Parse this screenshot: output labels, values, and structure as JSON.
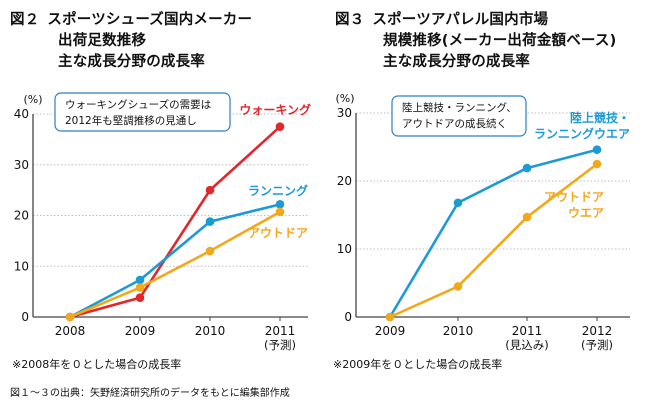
{
  "charts": {
    "left": {
      "title_fig": "図２",
      "title_lines": [
        "スポーツシューズ国内メーカー",
        "出荷足数推移",
        "主な成長分野の成長率"
      ],
      "note": "※2008年を０とした場合の成長率"
    },
    "right": {
      "title_fig": "図３",
      "title_lines": [
        "スポーツアパレル国内市場",
        "規模推移(メーカー出荷金額ベース)",
        "主な成長分野の成長率"
      ],
      "note": "※2009年を０とした場合の成長率"
    }
  },
  "source": "図１～３の出典：矢野経済研究所のデータをもとに編集部作成",
  "chart_data": [
    {
      "type": "line",
      "title": "図２ スポーツシューズ国内メーカー 出荷足数推移 主な成長分野の成長率",
      "unit_label": "(%)",
      "x": [
        "2008",
        "2009",
        "2010",
        "2011"
      ],
      "x_sublabels": [
        "",
        "",
        "",
        "(予測)"
      ],
      "ylim": [
        0,
        40
      ],
      "yticks": [
        0,
        10,
        20,
        30,
        40
      ],
      "grid": true,
      "series": [
        {
          "name": "ウォーキング",
          "color": "#e1262c",
          "values": [
            0,
            3.8,
            25,
            37.5
          ]
        },
        {
          "name": "ランニング",
          "color": "#1c9ad6",
          "values": [
            0,
            7.3,
            18.8,
            22.2
          ]
        },
        {
          "name": "アウトドア",
          "color": "#f2a81d",
          "values": [
            0,
            5.8,
            13,
            20.7
          ]
        }
      ],
      "annotation": [
        "ウォーキングシューズの需要は",
        "2012年も堅調推移の見通し"
      ]
    },
    {
      "type": "line",
      "title": "図３ スポーツアパレル国内市場 規模推移(メーカー出荷金額ベース) 主な成長分野の成長率",
      "unit_label": "(%)",
      "x": [
        "2009",
        "2010",
        "2011",
        "2012"
      ],
      "x_sublabels": [
        "",
        "",
        "(見込み)",
        "(予測)"
      ],
      "ylim": [
        0,
        30
      ],
      "yticks": [
        0,
        10,
        20,
        30
      ],
      "grid": true,
      "series": [
        {
          "name": "陸上競技・ランニングウエア",
          "label_lines": [
            "陸上競技・",
            "ランニングウエア"
          ],
          "color": "#1c9ad6",
          "values": [
            0,
            16.8,
            21.9,
            24.6
          ]
        },
        {
          "name": "アウトドアウエア",
          "label_lines": [
            "アウトドア",
            "ウエア"
          ],
          "color": "#f2a81d",
          "values": [
            0,
            4.5,
            14.7,
            22.5
          ]
        }
      ],
      "annotation": [
        "陸上競技・ランニング、",
        "アウトドアの成長続く"
      ]
    }
  ]
}
